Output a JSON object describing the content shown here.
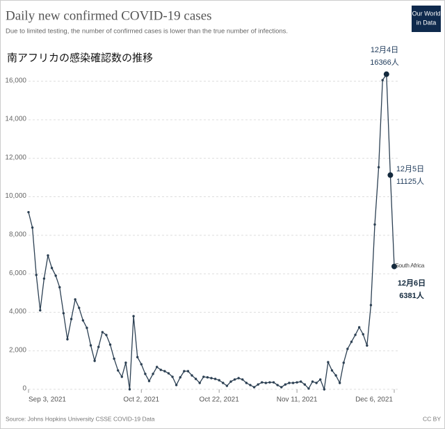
{
  "chart_data": {
    "type": "line",
    "title": "Daily new confirmed COVID-19 cases",
    "subtitle": "Due to limited testing, the number of confirmed cases is lower than the true number of infections.",
    "overlay_title": "南アフリカの感染確認数の推移",
    "logo": [
      "Our World",
      "in Data"
    ],
    "source": "Source: Johns Hopkins University CSSE COVID-19 Data",
    "license": "CC BY",
    "x": [
      "2021-09-03",
      "2021-09-04",
      "2021-09-05",
      "2021-09-06",
      "2021-09-07",
      "2021-09-08",
      "2021-09-09",
      "2021-09-10",
      "2021-09-11",
      "2021-09-12",
      "2021-09-13",
      "2021-09-14",
      "2021-09-15",
      "2021-09-16",
      "2021-09-17",
      "2021-09-18",
      "2021-09-19",
      "2021-09-20",
      "2021-09-21",
      "2021-09-22",
      "2021-09-23",
      "2021-09-24",
      "2021-09-25",
      "2021-09-26",
      "2021-09-27",
      "2021-09-28",
      "2021-09-29",
      "2021-09-30",
      "2021-10-01",
      "2021-10-02",
      "2021-10-03",
      "2021-10-04",
      "2021-10-05",
      "2021-10-06",
      "2021-10-07",
      "2021-10-08",
      "2021-10-09",
      "2021-10-10",
      "2021-10-11",
      "2021-10-12",
      "2021-10-13",
      "2021-10-14",
      "2021-10-15",
      "2021-10-16",
      "2021-10-17",
      "2021-10-18",
      "2021-10-19",
      "2021-10-20",
      "2021-10-21",
      "2021-10-22",
      "2021-10-23",
      "2021-10-24",
      "2021-10-25",
      "2021-10-26",
      "2021-10-27",
      "2021-10-28",
      "2021-10-29",
      "2021-10-30",
      "2021-10-31",
      "2021-11-01",
      "2021-11-02",
      "2021-11-03",
      "2021-11-04",
      "2021-11-05",
      "2021-11-06",
      "2021-11-07",
      "2021-11-08",
      "2021-11-09",
      "2021-11-10",
      "2021-11-11",
      "2021-11-12",
      "2021-11-13",
      "2021-11-14",
      "2021-11-15",
      "2021-11-16",
      "2021-11-17",
      "2021-11-18",
      "2021-11-19",
      "2021-11-20",
      "2021-11-21",
      "2021-11-22",
      "2021-11-23",
      "2021-11-24",
      "2021-11-25",
      "2021-11-26",
      "2021-11-27",
      "2021-11-28",
      "2021-11-29",
      "2021-11-30",
      "2021-12-01",
      "2021-12-02",
      "2021-12-03",
      "2021-12-04",
      "2021-12-05",
      "2021-12-06"
    ],
    "series": [
      {
        "name": "South Africa",
        "color": "#2b3f52",
        "values": [
          9200,
          8400,
          5940,
          4100,
          5750,
          6950,
          6300,
          5900,
          5300,
          3950,
          2600,
          3650,
          4670,
          4230,
          3580,
          3190,
          2280,
          1480,
          2200,
          2970,
          2820,
          2320,
          1590,
          980,
          650,
          1380,
          0,
          3800,
          1670,
          1300,
          800,
          430,
          800,
          1160,
          1010,
          940,
          830,
          650,
          220,
          620,
          940,
          940,
          720,
          540,
          330,
          650,
          620,
          580,
          540,
          470,
          330,
          180,
          400,
          510,
          580,
          510,
          330,
          220,
          110,
          250,
          360,
          330,
          360,
          360,
          220,
          110,
          250,
          330,
          330,
          360,
          400,
          250,
          40,
          400,
          330,
          510,
          0,
          1410,
          980,
          720,
          330,
          1380,
          2100,
          2465,
          2828,
          3220,
          2858,
          2273,
          4373,
          8561,
          11535,
          16055,
          16366,
          11125,
          6381
        ]
      }
    ],
    "annotations": [
      {
        "date": "12月4日",
        "text": "16366人",
        "bold": false
      },
      {
        "date": "12月5日",
        "text": "11125人",
        "bold": false
      },
      {
        "date": "12月6日",
        "text": "6381人",
        "bold": true
      }
    ],
    "xlim": [
      "2021-09-03",
      "2021-12-06"
    ],
    "xticks": [
      {
        "value": "2021-09-03",
        "label": "Sep 3, 2021"
      },
      {
        "value": "2021-10-02",
        "label": "Oct 2, 2021"
      },
      {
        "value": "2021-10-22",
        "label": "Oct 22, 2021"
      },
      {
        "value": "2021-11-11",
        "label": "Nov 11, 2021"
      },
      {
        "value": "2021-12-06",
        "label": "Dec 6, 2021"
      }
    ],
    "ylim": [
      0,
      17000
    ],
    "yticks": [
      0,
      {
        "value": 2000,
        "label": "2,000"
      },
      {
        "value": 4000,
        "label": "4,000"
      },
      {
        "value": 6000,
        "label": "6,000"
      },
      {
        "value": 8000,
        "label": "8,000"
      },
      {
        "value": 10000,
        "label": "10,000"
      },
      {
        "value": 12000,
        "label": "12,000"
      },
      {
        "value": 14000,
        "label": "14,000"
      },
      {
        "value": 16000,
        "label": "16,000"
      }
    ],
    "grid": true
  }
}
